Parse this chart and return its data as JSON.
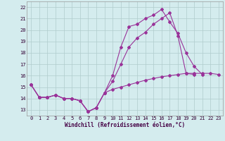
{
  "xlabel": "Windchill (Refroidissement éolien,°C)",
  "xlim": [
    -0.5,
    23.5
  ],
  "ylim": [
    12.5,
    22.5
  ],
  "yticks": [
    13,
    14,
    15,
    16,
    17,
    18,
    19,
    20,
    21,
    22
  ],
  "xticks": [
    0,
    1,
    2,
    3,
    4,
    5,
    6,
    7,
    8,
    9,
    10,
    11,
    12,
    13,
    14,
    15,
    16,
    17,
    18,
    19,
    20,
    21,
    22,
    23
  ],
  "bg_color": "#d4ecee",
  "line_color": "#993399",
  "grid_color": "#b0cccc",
  "line1_x": [
    0,
    1,
    2,
    3,
    4,
    5,
    6,
    7,
    8,
    9,
    10,
    11,
    12,
    13,
    14,
    15,
    16,
    17,
    18,
    19,
    20,
    21
  ],
  "line1_y": [
    15.2,
    14.1,
    14.1,
    14.3,
    14.0,
    14.0,
    13.8,
    12.85,
    13.2,
    14.5,
    16.0,
    18.5,
    20.3,
    20.5,
    21.0,
    21.3,
    21.8,
    20.7,
    19.7,
    18.0,
    16.8,
    16.1
  ],
  "line2_x": [
    0,
    1,
    2,
    3,
    4,
    5,
    6,
    7,
    8,
    9,
    10,
    11,
    12,
    13,
    14,
    15,
    16,
    17,
    18,
    19,
    20
  ],
  "line2_y": [
    15.2,
    14.1,
    14.1,
    14.3,
    14.0,
    14.0,
    13.8,
    12.85,
    13.2,
    14.5,
    15.5,
    17.0,
    18.5,
    19.3,
    19.8,
    20.5,
    21.0,
    21.5,
    19.5,
    16.2,
    16.1
  ],
  "line3_x": [
    0,
    1,
    2,
    3,
    4,
    5,
    6,
    7,
    8,
    9,
    10,
    11,
    12,
    13,
    14,
    15,
    16,
    17,
    18,
    19,
    20,
    21,
    22,
    23
  ],
  "line3_y": [
    15.2,
    14.1,
    14.1,
    14.3,
    14.0,
    14.0,
    13.8,
    12.85,
    13.2,
    14.5,
    14.8,
    15.0,
    15.2,
    15.4,
    15.6,
    15.75,
    15.9,
    16.0,
    16.1,
    16.2,
    16.2,
    16.2,
    16.2,
    16.1
  ]
}
